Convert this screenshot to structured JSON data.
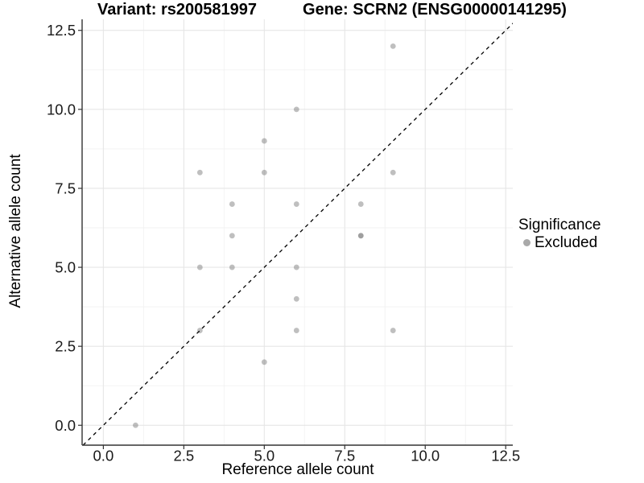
{
  "chart_data": {
    "type": "scatter",
    "title_left": "Variant: rs200581997",
    "title_right": "Gene: SCRN2 (ENSG00000141295)",
    "xlabel": "Reference allele count",
    "ylabel": "Alternative allele count",
    "xlim": [
      -0.66,
      12.72
    ],
    "ylim": [
      -0.63,
      12.85
    ],
    "x_major_ticks": [
      0,
      2.5,
      5,
      7.5,
      10,
      12.5
    ],
    "y_major_ticks": [
      0,
      2.5,
      5,
      7.5,
      10,
      12.5
    ],
    "x_minor_ticks": [
      1.25,
      3.75,
      6.25,
      8.75,
      11.25
    ],
    "y_minor_ticks": [
      1.25,
      3.75,
      6.25,
      8.75,
      11.25
    ],
    "tick_label_decimals": 1,
    "grid": "major+minor",
    "identity_line": {
      "type": "abline",
      "slope": 1,
      "intercept": 0,
      "style": "dashed",
      "color": "#000000"
    },
    "series": [
      {
        "name": "Excluded",
        "marker_color": "#808080",
        "marker_opacity": 0.5,
        "marker_radius": 3.4,
        "points": [
          [
            1,
            0
          ],
          [
            3,
            3
          ],
          [
            3,
            5
          ],
          [
            3,
            8
          ],
          [
            4,
            5
          ],
          [
            4,
            6
          ],
          [
            4,
            7
          ],
          [
            5,
            2
          ],
          [
            5,
            8
          ],
          [
            5,
            9
          ],
          [
            6,
            3
          ],
          [
            6,
            4
          ],
          [
            6,
            5
          ],
          [
            6,
            7
          ],
          [
            6,
            10
          ],
          [
            8,
            6
          ],
          [
            8,
            6
          ],
          [
            8,
            7
          ],
          [
            9,
            3
          ],
          [
            9,
            8
          ],
          [
            9,
            12
          ]
        ]
      }
    ],
    "legend": {
      "position": "right",
      "title": "Significance",
      "items": [
        {
          "label": "Excluded",
          "marker_color": "#a9a9a9"
        }
      ]
    },
    "colors": {
      "background": "#ffffff",
      "grid_major": "#e6e6e6",
      "grid_minor": "#f2f2f2",
      "axis_line": "#333333",
      "tick_mark": "#333333",
      "tick_label": "#1a1a1a",
      "text": "#000000"
    }
  }
}
